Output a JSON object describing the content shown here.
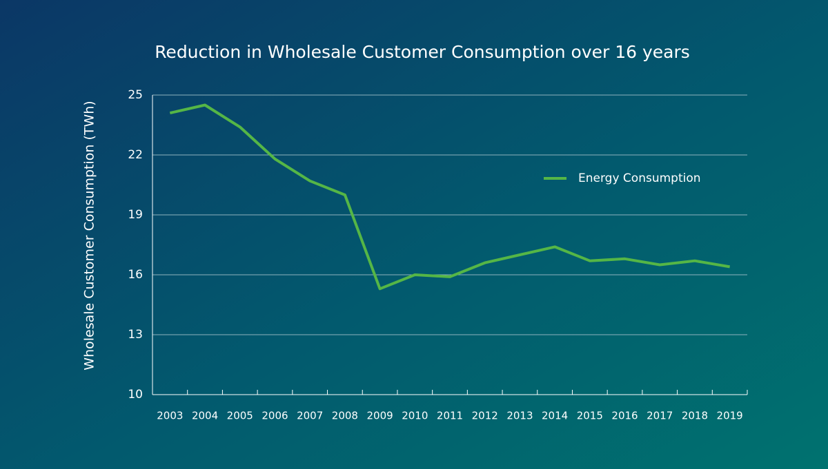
{
  "chart_data": {
    "type": "line",
    "title": "Reduction in Wholesale Customer Consumption over 16 years",
    "y_label": "Wholesale Customer Consumption (TWh)",
    "categories": [
      "2003",
      "2004",
      "2005",
      "2006",
      "2007",
      "2008",
      "2009",
      "2010",
      "2011",
      "2012",
      "2013",
      "2014",
      "2015",
      "2016",
      "2017",
      "2018",
      "2019"
    ],
    "series": [
      {
        "name": "Energy Consumption",
        "color": "#55b646",
        "values": [
          24.1,
          24.5,
          23.4,
          21.8,
          20.7,
          20.0,
          15.3,
          16.0,
          15.9,
          16.6,
          17.0,
          17.4,
          16.7,
          16.8,
          16.5,
          16.7,
          16.4
        ]
      }
    ],
    "ylim": [
      10,
      25
    ],
    "yticks": [
      10,
      13,
      16,
      19,
      22,
      25
    ],
    "grid": true,
    "legend": "upper right"
  }
}
